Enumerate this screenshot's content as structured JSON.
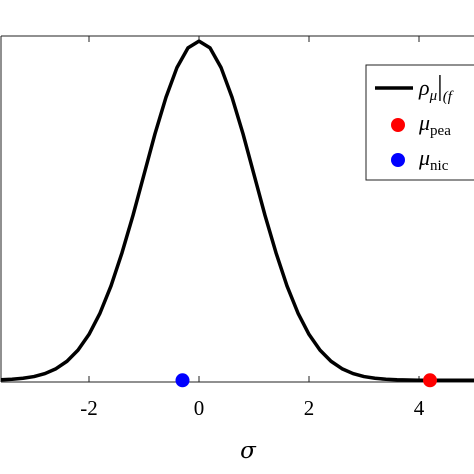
{
  "chart_data": {
    "type": "line",
    "xlabel": "σ",
    "ylabel": "",
    "title": "",
    "xlim": [
      -3.6,
      5.0
    ],
    "ylim": [
      -0.002,
      0.405
    ],
    "x_ticks": [
      -2,
      0,
      2,
      4
    ],
    "x_tick_labels": [
      "-2",
      "0",
      "2",
      "4"
    ],
    "grid": false,
    "series": [
      {
        "name": "ρ_μ|_(f",
        "kind": "line",
        "color": "#000000",
        "x": [
          -3.6,
          -3.4,
          -3.2,
          -3.0,
          -2.8,
          -2.6,
          -2.4,
          -2.2,
          -2.0,
          -1.8,
          -1.6,
          -1.4,
          -1.2,
          -1.0,
          -0.8,
          -0.6,
          -0.4,
          -0.2,
          0.0,
          0.2,
          0.4,
          0.6,
          0.8,
          1.0,
          1.2,
          1.4,
          1.6,
          1.8,
          2.0,
          2.2,
          2.4,
          2.6,
          2.8,
          3.0,
          3.2,
          3.4,
          3.6,
          3.8,
          4.0,
          4.4,
          4.8,
          5.0
        ],
        "y": [
          0.0006,
          0.0012,
          0.0024,
          0.0044,
          0.0079,
          0.0136,
          0.0224,
          0.0355,
          0.054,
          0.079,
          0.111,
          0.15,
          0.194,
          0.242,
          0.29,
          0.333,
          0.368,
          0.391,
          0.399,
          0.391,
          0.368,
          0.333,
          0.29,
          0.242,
          0.194,
          0.15,
          0.111,
          0.079,
          0.054,
          0.0355,
          0.0224,
          0.0136,
          0.0079,
          0.0044,
          0.0024,
          0.0012,
          0.0006,
          0.0003,
          0.00013,
          2e-05,
          0.0,
          0.0
        ]
      },
      {
        "name": "μ_pea",
        "kind": "point",
        "color": "#ff0000",
        "x": [
          4.2
        ],
        "y": [
          0.0
        ]
      },
      {
        "name": "μ_nic",
        "kind": "point",
        "color": "#0000ff",
        "x": [
          -0.3
        ],
        "y": [
          0.0
        ]
      }
    ],
    "legend": {
      "placement": "top-right",
      "entries": [
        {
          "symbol": "ρ",
          "sub": "μ",
          "tail": "|",
          "tail_sub": "(f"
        },
        {
          "symbol": "μ",
          "sub": "pea"
        },
        {
          "symbol": "μ",
          "sub": "nic"
        }
      ]
    }
  }
}
